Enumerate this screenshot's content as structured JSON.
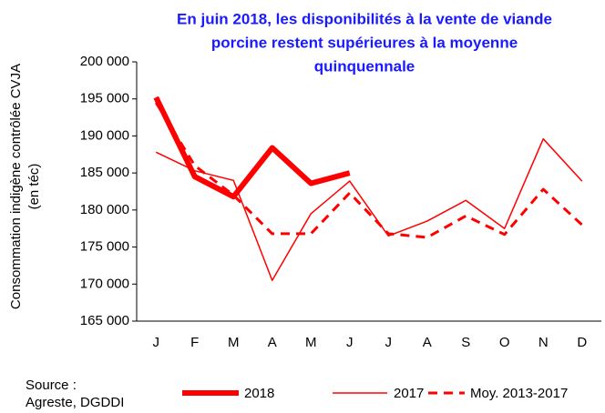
{
  "chart_data": {
    "type": "line",
    "title": [
      "En juin 2018, les disponibilités à la vente de viande",
      "porcine restent supérieures à la moyenne",
      "quinquennale"
    ],
    "y_label": [
      "Consommation indigène contrôlée CVJA",
      "(en téc)"
    ],
    "source": [
      "Source :",
      "Agreste, DGDDI"
    ],
    "categories": [
      "J",
      "F",
      "M",
      "A",
      "M",
      "J",
      "J",
      "A",
      "S",
      "O",
      "N",
      "D"
    ],
    "series": [
      {
        "name": "2018",
        "color": "#ff0000",
        "style": "thick",
        "values": [
          195200,
          184500,
          181800,
          188400,
          183600,
          185000,
          null,
          null,
          null,
          null,
          null,
          null
        ]
      },
      {
        "name": "2017",
        "color": "#ff0000",
        "style": "thin",
        "values": [
          187800,
          185300,
          184000,
          170500,
          179500,
          183900,
          176500,
          178500,
          181300,
          177500,
          189600,
          183900
        ]
      },
      {
        "name": "Moy. 2013-2017",
        "color": "#ff0000",
        "style": "dashed",
        "values": [
          194500,
          186000,
          182000,
          176800,
          176800,
          182300,
          176800,
          176300,
          179200,
          176700,
          182800,
          178000
        ]
      }
    ],
    "ylim": [
      165000,
      200000
    ],
    "yticks": [
      {
        "value": 165000,
        "label": "165 000"
      },
      {
        "value": 170000,
        "label": "170 000"
      },
      {
        "value": 175000,
        "label": "175 000"
      },
      {
        "value": 180000,
        "label": "180 000"
      },
      {
        "value": 185000,
        "label": "185 000"
      },
      {
        "value": 190000,
        "label": "190 000"
      },
      {
        "value": 195000,
        "label": "195 000"
      },
      {
        "value": 200000,
        "label": "200 000"
      }
    ],
    "grid": false
  }
}
